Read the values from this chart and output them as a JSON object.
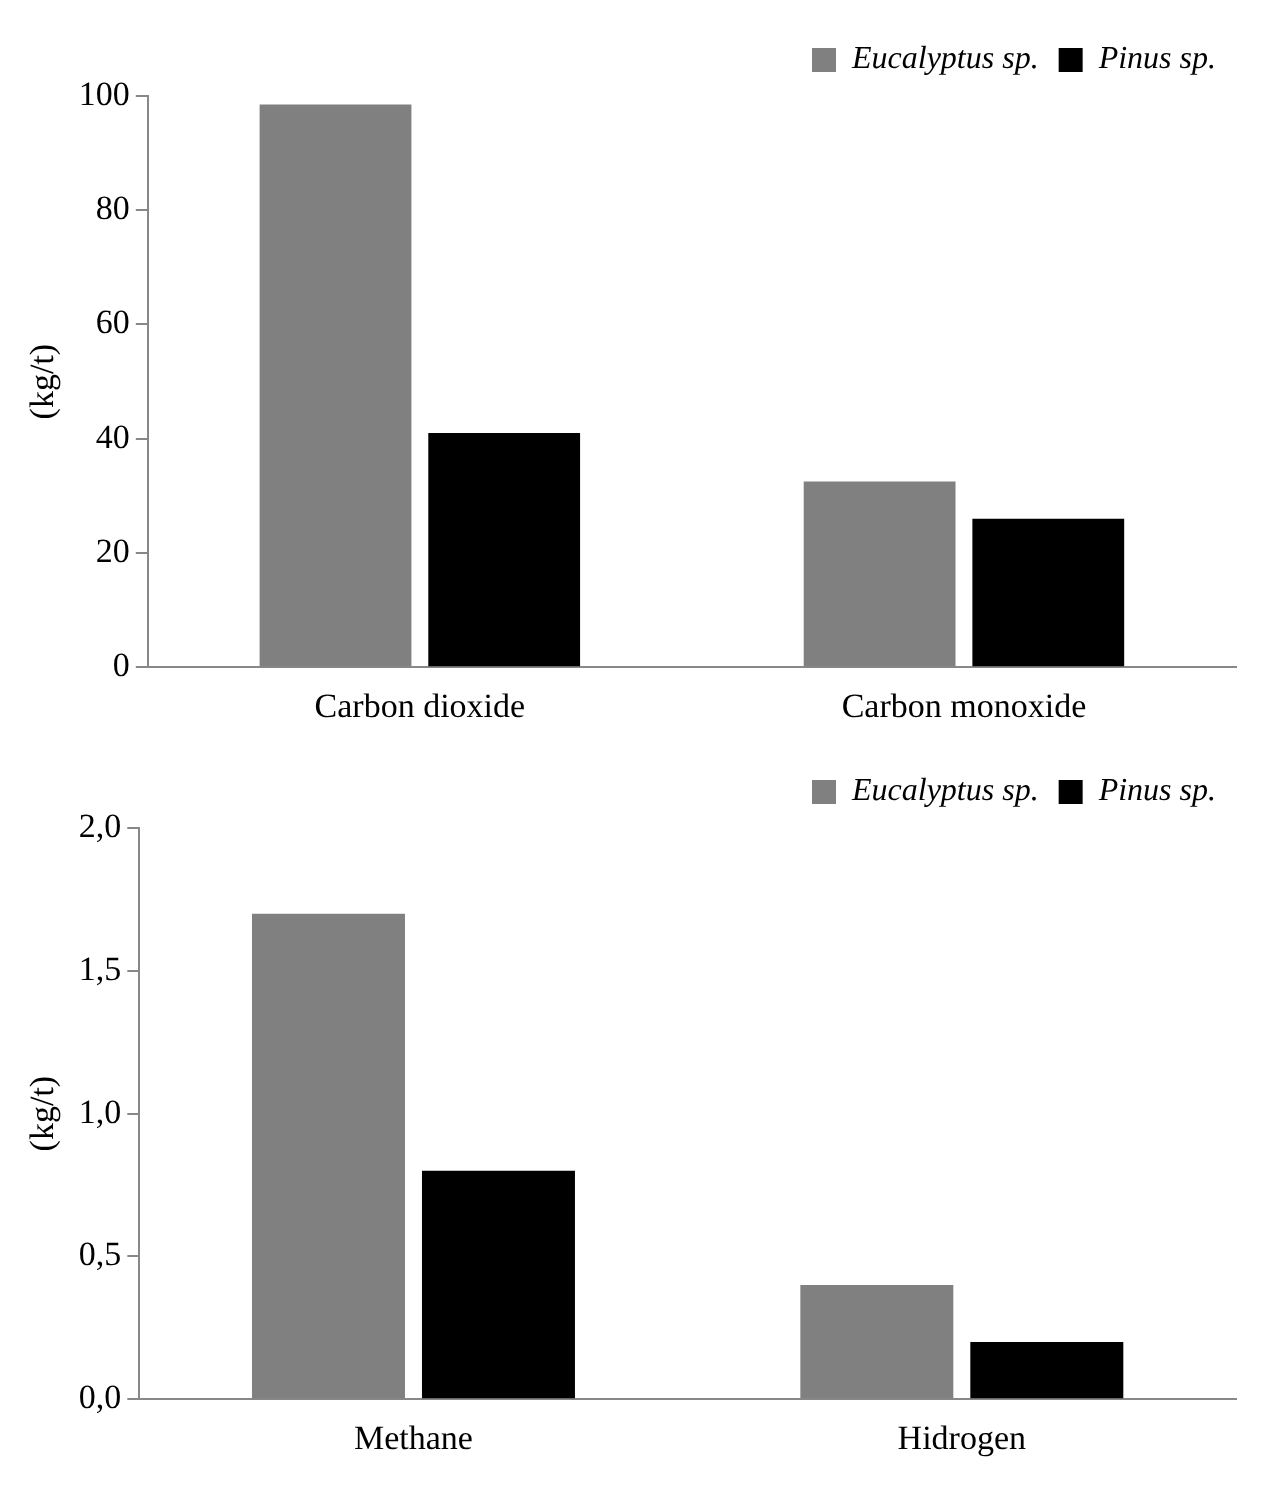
{
  "chart_data": [
    {
      "type": "bar",
      "ylabel": "(kg/t)",
      "categories": [
        "Carbon dioxide",
        "Carbon monoxide"
      ],
      "series": [
        {
          "name": "Eucalyptus sp.",
          "color": "#808080",
          "values": [
            98.5,
            32.5
          ]
        },
        {
          "name": "Pinus sp.",
          "color": "#000000",
          "values": [
            41,
            26
          ]
        }
      ],
      "ylim": [
        0,
        100
      ],
      "yticks": [
        0,
        20,
        40,
        60,
        80,
        100
      ],
      "grid": false,
      "legend": "top right"
    },
    {
      "type": "bar",
      "ylabel": "(kg/t)",
      "categories": [
        "Methane",
        "Hidrogen"
      ],
      "series": [
        {
          "name": "Eucalyptus sp.",
          "color": "#808080",
          "values": [
            1.7,
            0.4
          ]
        },
        {
          "name": "Pinus sp.",
          "color": "#000000",
          "values": [
            0.8,
            0.2
          ]
        }
      ],
      "ylim": [
        0,
        2
      ],
      "yticks": [
        {
          "value": 0,
          "label": "0,0"
        },
        {
          "value": 0.5,
          "label": "0,5"
        },
        {
          "value": 1,
          "label": "1,0"
        },
        {
          "value": 1.5,
          "label": "1,5"
        },
        {
          "value": 2,
          "label": "2,0"
        }
      ],
      "grid": false,
      "legend": "top right"
    }
  ]
}
